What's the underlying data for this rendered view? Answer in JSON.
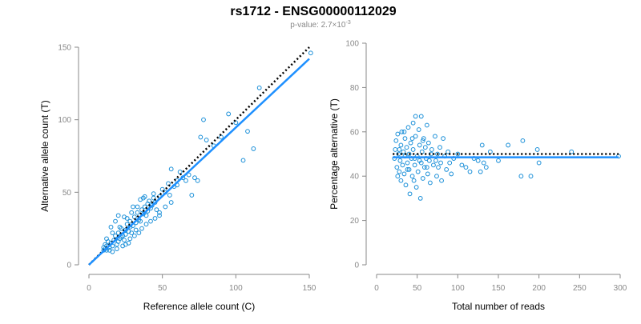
{
  "figure": {
    "title": "rs1712 - ENSG00000112029",
    "subtitle_prefix": "p-value: 2.7×10",
    "subtitle_exp": "-3"
  },
  "colors": {
    "points": "#1a8fd8",
    "fit": "#1e90ff",
    "reference": "#000000"
  },
  "chart_data": [
    {
      "type": "scatter",
      "xlabel": "Reference allele count (C)",
      "ylabel": "Alternative allele count (T)",
      "xlim": [
        0,
        150
      ],
      "ylim": [
        0,
        150
      ],
      "xticks": [
        0,
        50,
        100,
        150
      ],
      "yticks": [
        0,
        50,
        100,
        150
      ],
      "grid": false,
      "fit_line": {
        "style": "solid",
        "from": [
          0,
          0
        ],
        "to": [
          150,
          142
        ]
      },
      "reference_line": {
        "style": "dotted",
        "from": [
          0,
          0
        ],
        "to": [
          150,
          150
        ]
      },
      "points": [
        [
          10,
          10
        ],
        [
          11,
          11
        ],
        [
          10,
          12
        ],
        [
          11,
          14
        ],
        [
          12,
          13
        ],
        [
          12,
          10
        ],
        [
          13,
          16
        ],
        [
          14,
          12
        ],
        [
          15,
          15
        ],
        [
          16,
          13
        ],
        [
          17,
          17
        ],
        [
          18,
          20
        ],
        [
          19,
          14
        ],
        [
          20,
          16
        ],
        [
          20,
          22
        ],
        [
          21,
          18
        ],
        [
          22,
          19
        ],
        [
          22,
          25
        ],
        [
          23,
          20
        ],
        [
          24,
          17
        ],
        [
          25,
          24
        ],
        [
          25,
          21
        ],
        [
          26,
          28
        ],
        [
          27,
          23
        ],
        [
          28,
          26
        ],
        [
          28,
          30
        ],
        [
          29,
          22
        ],
        [
          30,
          27
        ],
        [
          31,
          33
        ],
        [
          32,
          29
        ],
        [
          33,
          36
        ],
        [
          34,
          31
        ],
        [
          35,
          30
        ],
        [
          36,
          38
        ],
        [
          37,
          35
        ],
        [
          38,
          40
        ],
        [
          39,
          34
        ],
        [
          40,
          42
        ],
        [
          40,
          37
        ],
        [
          41,
          44
        ],
        [
          42,
          39
        ],
        [
          43,
          41
        ],
        [
          44,
          46
        ],
        [
          45,
          43
        ],
        [
          46,
          38
        ],
        [
          48,
          47
        ],
        [
          50,
          52
        ],
        [
          52,
          50
        ],
        [
          54,
          56
        ],
        [
          55,
          48
        ],
        [
          56,
          66
        ],
        [
          58,
          54
        ],
        [
          60,
          55
        ],
        [
          62,
          64
        ],
        [
          64,
          60
        ],
        [
          66,
          58
        ],
        [
          68,
          62
        ],
        [
          70,
          48
        ],
        [
          72,
          60
        ],
        [
          74,
          58
        ],
        [
          76,
          88
        ],
        [
          78,
          100
        ],
        [
          80,
          86
        ],
        [
          85,
          82
        ],
        [
          90,
          88
        ],
        [
          95,
          104
        ],
        [
          100,
          98
        ],
        [
          105,
          72
        ],
        [
          108,
          92
        ],
        [
          112,
          80
        ],
        [
          116,
          122
        ],
        [
          151,
          146
        ],
        [
          15,
          26
        ],
        [
          18,
          30
        ],
        [
          20,
          34
        ],
        [
          24,
          33
        ],
        [
          30,
          40
        ],
        [
          35,
          45
        ],
        [
          38,
          47
        ],
        [
          44,
          49
        ],
        [
          48,
          34
        ],
        [
          52,
          40
        ],
        [
          56,
          43
        ],
        [
          60,
          58
        ],
        [
          14,
          10
        ],
        [
          16,
          9
        ],
        [
          19,
          11
        ],
        [
          23,
          13
        ],
        [
          27,
          15
        ],
        [
          31,
          20
        ],
        [
          34,
          22
        ],
        [
          36,
          25
        ],
        [
          39,
          28
        ],
        [
          42,
          30
        ],
        [
          45,
          32
        ],
        [
          48,
          36
        ],
        [
          12,
          18
        ],
        [
          16,
          22
        ],
        [
          21,
          26
        ],
        [
          26,
          32
        ],
        [
          29,
          36
        ],
        [
          33,
          40
        ],
        [
          37,
          46
        ],
        [
          25,
          14
        ],
        [
          28,
          18
        ],
        [
          32,
          24
        ]
      ]
    },
    {
      "type": "scatter",
      "xlabel": "Total number of reads",
      "ylabel": "Percentage alternative (T)",
      "xlim": [
        0,
        300
      ],
      "ylim": [
        0,
        100
      ],
      "xticks": [
        0,
        50,
        100,
        150,
        200,
        250,
        300
      ],
      "yticks": [
        0,
        20,
        40,
        60,
        80,
        100
      ],
      "grid": false,
      "fit_line": {
        "style": "solid",
        "from": [
          20,
          48.5
        ],
        "to": [
          298,
          48.5
        ]
      },
      "reference_line": {
        "style": "dotted",
        "from": [
          20,
          50
        ],
        "to": [
          298,
          50
        ]
      },
      "points": [
        [
          22,
          48
        ],
        [
          23,
          52
        ],
        [
          24,
          56
        ],
        [
          25,
          44
        ],
        [
          26,
          59
        ],
        [
          27,
          50
        ],
        [
          28,
          42
        ],
        [
          29,
          47
        ],
        [
          30,
          54
        ],
        [
          30,
          38
        ],
        [
          31,
          60
        ],
        [
          32,
          45
        ],
        [
          33,
          51
        ],
        [
          34,
          41
        ],
        [
          35,
          49
        ],
        [
          35,
          57
        ],
        [
          36,
          36
        ],
        [
          37,
          53
        ],
        [
          38,
          46
        ],
        [
          39,
          62
        ],
        [
          40,
          43
        ],
        [
          40,
          50
        ],
        [
          41,
          32
        ],
        [
          42,
          55
        ],
        [
          43,
          48
        ],
        [
          44,
          40
        ],
        [
          45,
          64
        ],
        [
          45,
          52
        ],
        [
          46,
          38
        ],
        [
          47,
          45
        ],
        [
          48,
          67
        ],
        [
          48,
          58
        ],
        [
          49,
          35
        ],
        [
          50,
          49
        ],
        [
          51,
          42
        ],
        [
          52,
          61
        ],
        [
          53,
          54
        ],
        [
          54,
          30
        ],
        [
          55,
          46
        ],
        [
          55,
          67
        ],
        [
          56,
          51
        ],
        [
          57,
          39
        ],
        [
          58,
          57
        ],
        [
          59,
          44
        ],
        [
          60,
          53
        ],
        [
          61,
          48
        ],
        [
          62,
          63
        ],
        [
          63,
          41
        ],
        [
          64,
          55
        ],
        [
          65,
          47
        ],
        [
          66,
          37
        ],
        [
          68,
          52
        ],
        [
          70,
          45
        ],
        [
          72,
          58
        ],
        [
          74,
          40
        ],
        [
          75,
          50
        ],
        [
          76,
          44
        ],
        [
          78,
          53
        ],
        [
          80,
          38
        ],
        [
          82,
          57
        ],
        [
          84,
          49
        ],
        [
          86,
          43
        ],
        [
          88,
          51
        ],
        [
          90,
          46
        ],
        [
          92,
          41
        ],
        [
          95,
          48
        ],
        [
          100,
          50
        ],
        [
          105,
          45
        ],
        [
          110,
          44
        ],
        [
          115,
          42
        ],
        [
          120,
          48
        ],
        [
          125,
          47
        ],
        [
          128,
          42
        ],
        [
          130,
          54
        ],
        [
          132,
          46
        ],
        [
          135,
          44
        ],
        [
          140,
          51
        ],
        [
          150,
          47
        ],
        [
          162,
          54
        ],
        [
          178,
          40
        ],
        [
          180,
          56
        ],
        [
          190,
          40
        ],
        [
          198,
          52
        ],
        [
          200,
          46
        ],
        [
          240,
          51
        ],
        [
          298,
          49
        ],
        [
          26,
          40
        ],
        [
          28,
          52
        ],
        [
          34,
          60
        ],
        [
          38,
          43
        ],
        [
          44,
          57
        ],
        [
          47,
          48
        ],
        [
          53,
          47
        ],
        [
          57,
          56
        ],
        [
          62,
          44
        ],
        [
          67,
          50
        ],
        [
          73,
          47
        ],
        [
          79,
          46
        ]
      ]
    }
  ]
}
